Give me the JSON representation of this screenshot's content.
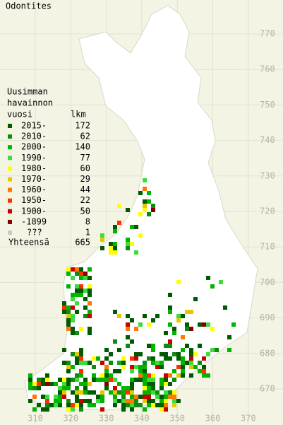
{
  "map": {
    "title": "Odontites",
    "legend": {
      "heading": [
        "Uusimman",
        "havainnon",
        "vuosi"
      ],
      "count_heading": "lkm",
      "entries": [
        {
          "label": "2015-",
          "count": 172,
          "color": "#005a00"
        },
        {
          "label": "2010-",
          "count": 62,
          "color": "#108a10"
        },
        {
          "label": "2000-",
          "count": 140,
          "color": "#00b400"
        },
        {
          "label": "1990-",
          "count": 77,
          "color": "#3cdc3c"
        },
        {
          "label": "1980-",
          "count": 60,
          "color": "#ffff00"
        },
        {
          "label": "1970-",
          "count": 29,
          "color": "#e6c800"
        },
        {
          "label": "1960-",
          "count": 44,
          "color": "#ff7800"
        },
        {
          "label": "1950-",
          "count": 22,
          "color": "#ff3000"
        },
        {
          "label": "1900-",
          "count": 50,
          "color": "#c80000"
        },
        {
          "label": "-1899",
          "count": 8,
          "color": "#800000"
        },
        {
          "label": "???",
          "count": 1,
          "color": "#c8c8c8"
        }
      ],
      "total": {
        "label": "Yhteensä",
        "count": 665
      }
    },
    "yticks": [
      770,
      760,
      750,
      740,
      730,
      720,
      710,
      700,
      690,
      680,
      670
    ],
    "xticks": [
      310,
      320,
      330,
      340,
      350,
      360,
      370
    ]
  }
}
